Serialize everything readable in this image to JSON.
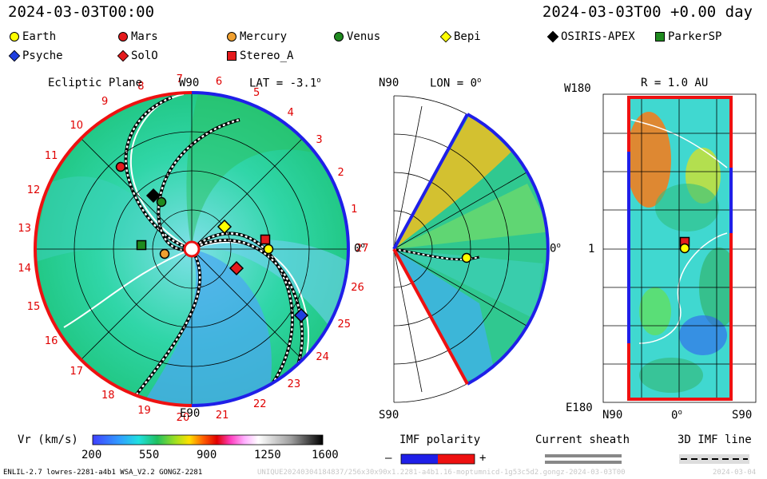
{
  "header": {
    "time_left": "2024-03-03T00:00",
    "time_right": "2024-03-03T00 +0.00 day"
  },
  "legend": {
    "items": [
      {
        "name": "Earth",
        "shape": "circle",
        "color": "#ffff00"
      },
      {
        "name": "Mars",
        "shape": "circle",
        "color": "#e41a1c"
      },
      {
        "name": "Mercury",
        "shape": "circle",
        "color": "#f0a030"
      },
      {
        "name": "Venus",
        "shape": "circle",
        "color": "#1f8a1f"
      },
      {
        "name": "Bepi",
        "shape": "diamond",
        "color": "#ffff00"
      },
      {
        "name": "OSIRIS-APEX",
        "shape": "diamond",
        "color": "#000000"
      },
      {
        "name": "ParkerSP",
        "shape": "square",
        "color": "#1f8a1f"
      },
      {
        "name": "Psyche",
        "shape": "diamond",
        "color": "#1f3fe0"
      },
      {
        "name": "SolO",
        "shape": "diamond",
        "color": "#e41a1c"
      },
      {
        "name": "Stereo_A",
        "shape": "square",
        "color": "#e41a1c"
      }
    ]
  },
  "panels": {
    "ecliptic": {
      "title": "Ecliptic Plane",
      "lat_label": "LAT = -3.1",
      "lat_deg": "o",
      "top": "W90",
      "bottom": "E90",
      "right": "0",
      "right_deg": "o"
    },
    "meridional": {
      "top": "N90",
      "lon_label": "LON = 0",
      "lon_deg": "o",
      "bottom": "S90",
      "right": "0",
      "right_deg": "o"
    },
    "radial": {
      "title": "R = 1.0 AU",
      "top": "W180",
      "bottom": "E180",
      "mid": "1",
      "x_left": "N90",
      "x_mid": "0",
      "x_mid_deg": "o",
      "x_right": "S90"
    }
  },
  "colorbar": {
    "label": "Vr (km/s)",
    "ticks": [
      "200",
      "550",
      "900",
      "1250",
      "1600"
    ]
  },
  "imf": {
    "title": "IMF polarity",
    "minus": "–",
    "plus": "+",
    "neg_color": "#1f1fe8",
    "pos_color": "#ee1111"
  },
  "sheath": {
    "title": "Current sheath"
  },
  "line3d": {
    "title": "3D IMF line"
  },
  "footer": {
    "model": "ENLIL-2.7 lowres-2281-a4b1 WSA_V2.2 GONGZ-2281",
    "runid": "UNIQUE20240304184837/256x30x90x1.2281-a4b1.16-moptumnicd-1g53c5d2.gongz-2024-03-03T00",
    "date": "2024-03-04"
  },
  "chart_data": {
    "type": "heatmap",
    "carrington_labels": [
      "1",
      "2",
      "3",
      "4",
      "5",
      "6",
      "7",
      "8",
      "9",
      "10",
      "11",
      "12",
      "13",
      "14",
      "15",
      "16",
      "17",
      "18",
      "19",
      "20",
      "21",
      "22",
      "23",
      "24",
      "25",
      "26",
      "27"
    ],
    "colorbar_range": [
      200,
      1600
    ],
    "bodies_ecliptic": [
      "Earth",
      "Mars",
      "Mercury",
      "Venus",
      "Bepi",
      "OSIRIS-APEX",
      "ParkerSP",
      "Psyche",
      "SolO",
      "Stereo_A"
    ],
    "bodies_radial": [
      "Earth",
      "Stereo_A"
    ]
  }
}
